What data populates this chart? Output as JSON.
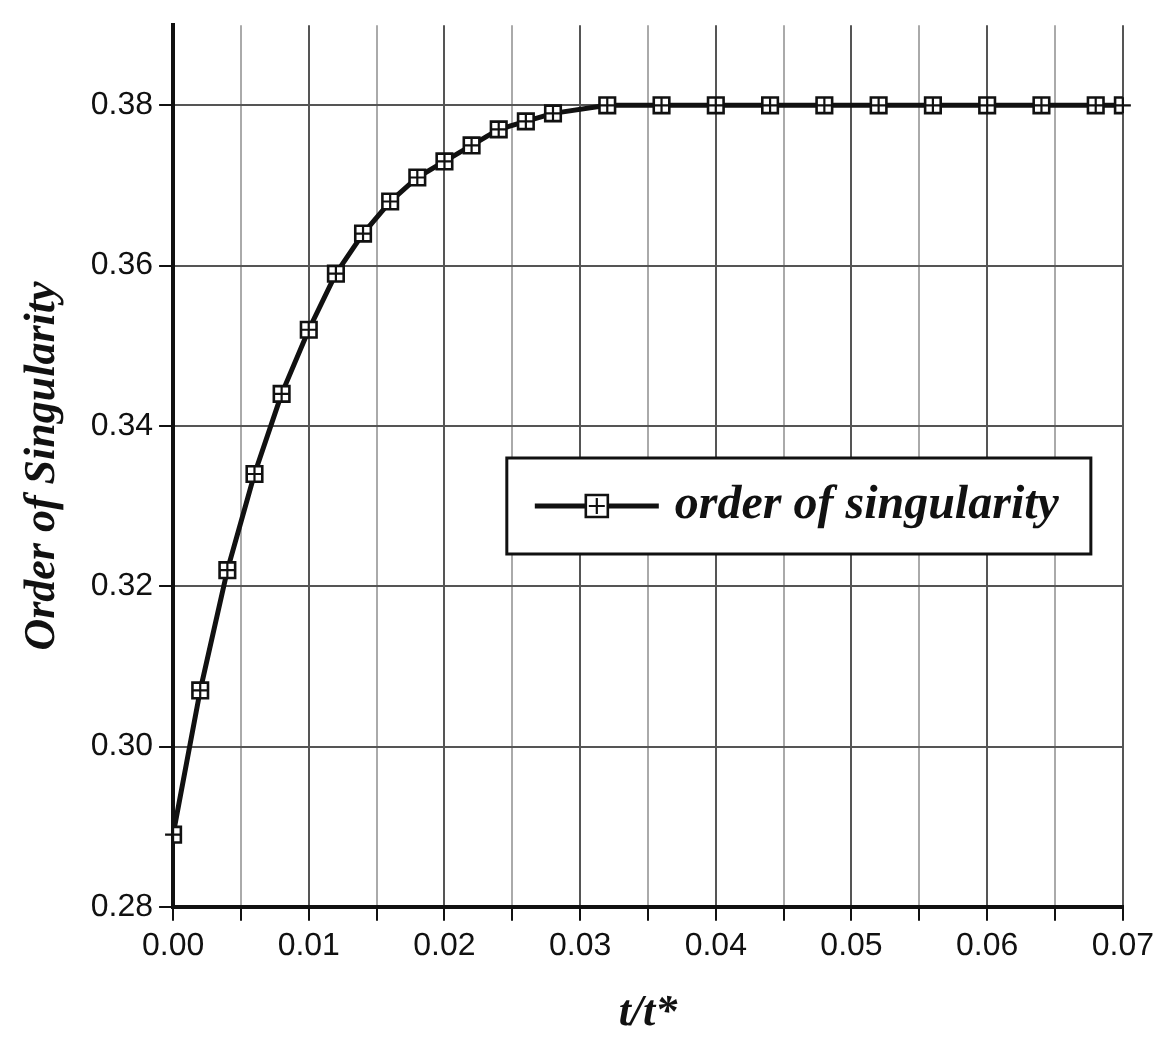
{
  "chart_data": {
    "type": "line",
    "xlabel": "t/t*",
    "ylabel": "Order of Singularity",
    "x": [
      0,
      0.002,
      0.004,
      0.006,
      0.008,
      0.01,
      0.012,
      0.014,
      0.016,
      0.018,
      0.02,
      0.022,
      0.024,
      0.026,
      0.028,
      0.032,
      0.036,
      0.04,
      0.044,
      0.048,
      0.052,
      0.056,
      0.06,
      0.064,
      0.068,
      0.07
    ],
    "series": [
      {
        "name": "order of singularity",
        "color": "#111111",
        "values": [
          0.289,
          0.307,
          0.322,
          0.334,
          0.344,
          0.352,
          0.359,
          0.364,
          0.368,
          0.371,
          0.373,
          0.375,
          0.377,
          0.378,
          0.379,
          0.38,
          0.38,
          0.38,
          0.38,
          0.38,
          0.38,
          0.38,
          0.38,
          0.38,
          0.38,
          0.38
        ]
      }
    ],
    "xlim": [
      0,
      0.07
    ],
    "xticks": [
      {
        "value": 0,
        "label": "0.00"
      },
      {
        "value": 0.005,
        "label": null
      },
      {
        "value": 0.01,
        "label": "0.01"
      },
      {
        "value": 0.015,
        "label": null
      },
      {
        "value": 0.02,
        "label": "0.02"
      },
      {
        "value": 0.025,
        "label": null
      },
      {
        "value": 0.03,
        "label": "0.03"
      },
      {
        "value": 0.035,
        "label": null
      },
      {
        "value": 0.04,
        "label": "0.04"
      },
      {
        "value": 0.045,
        "label": null
      },
      {
        "value": 0.05,
        "label": "0.05"
      },
      {
        "value": 0.055,
        "label": null
      },
      {
        "value": 0.06,
        "label": "0.06"
      },
      {
        "value": 0.065,
        "label": null
      },
      {
        "value": 0.07,
        "label": "0.07"
      }
    ],
    "ylim": [
      0.28,
      0.39
    ],
    "yticks": [
      {
        "value": 0.28,
        "label": "0.28"
      },
      {
        "value": 0.3,
        "label": "0.30"
      },
      {
        "value": 0.32,
        "label": "0.32"
      },
      {
        "value": 0.34,
        "label": "0.34"
      },
      {
        "value": 0.36,
        "label": "0.36"
      },
      {
        "value": 0.38,
        "label": "0.38"
      }
    ],
    "grid": true,
    "legend": "right",
    "marker": "square",
    "line_style": "solid"
  }
}
